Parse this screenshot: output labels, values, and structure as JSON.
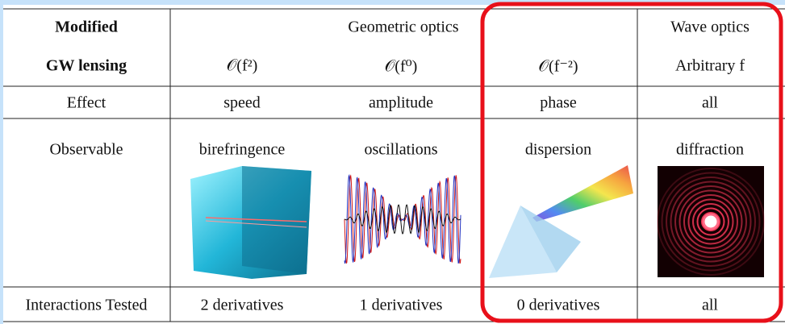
{
  "table": {
    "header": [
      [
        "Modified",
        "Geometric optics",
        "Wave optics"
      ],
      [
        "GW lensing",
        "𝒪(f²)",
        "𝒪(f⁰)",
        "𝒪(f⁻²)",
        "Arbitrary f"
      ]
    ],
    "rows": [
      [
        "Effect",
        "speed",
        "amplitude",
        "phase",
        "all"
      ],
      [
        "Observable",
        "birefringence",
        "oscillations",
        "dispersion",
        "diffraction"
      ],
      [
        "Interactions Tested",
        "2 derivatives",
        "1 derivatives",
        "0 derivatives",
        "all"
      ]
    ]
  }
}
